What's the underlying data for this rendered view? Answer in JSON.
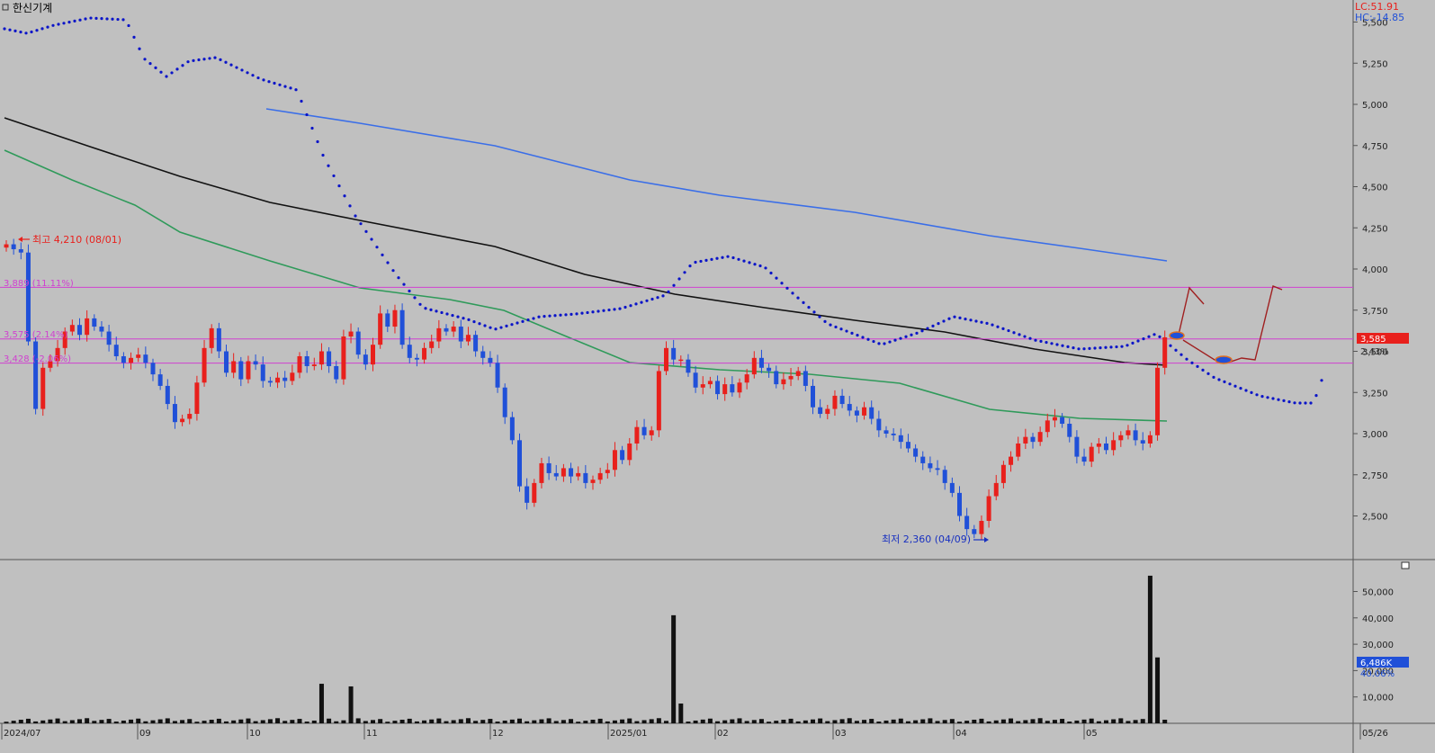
{
  "header": {
    "stock_name": "한신기계"
  },
  "indicators": {
    "lc": "LC:51.91",
    "hc": "HC:-14.85"
  },
  "annotations": {
    "high": "최고 4,210 (08/01)",
    "low": "최저 2,360 (04/09)",
    "level1": "3,889 (11.11%)",
    "level2": "3,575 (2.14%)",
    "level3": "3,428 (-2.06%)",
    "current_price": "3,585",
    "current_pct": "2.43%",
    "volume_current": "6,486K",
    "volume_pct": "40.06%"
  },
  "colors": {
    "up": "#e8201c",
    "down": "#2050d8",
    "ma_blue": "#3a6ee8",
    "ma_black": "#111111",
    "ma_green": "#2f9a5a",
    "dots": "#0a14c8",
    "level": "#d040d0"
  },
  "chart_data": {
    "type": "candlestick",
    "price_axis": {
      "ticks": [
        2500,
        2750,
        3000,
        3250,
        3500,
        3750,
        4000,
        4250,
        4500,
        4750,
        5000,
        5250,
        5500
      ],
      "tick_labels": [
        "2,500",
        "2,750",
        "3,000",
        "3,250",
        "3,500",
        "3,750",
        "4,000",
        "4,250",
        "4,500",
        "4,750",
        "5,000",
        "5,250",
        "5,500"
      ]
    },
    "volume_axis": {
      "ticks": [
        10000,
        20000,
        30000,
        40000,
        50000
      ],
      "tick_labels": [
        "10,000",
        "20,000",
        "30,000",
        "40,000",
        "50,000"
      ]
    },
    "date_axis": [
      "2024/07",
      "09",
      "10",
      "11",
      "12",
      "2025/01",
      "02",
      "03",
      "04",
      "05",
      "05/26"
    ],
    "levels": [
      3889,
      3575,
      3428
    ],
    "high": {
      "value": 4210,
      "date": "08/01"
    },
    "low": {
      "value": 2360,
      "date": "04/09"
    },
    "closes": [
      4150,
      4120,
      4100,
      3560,
      3150,
      3400,
      3440,
      3520,
      3620,
      3660,
      3600,
      3700,
      3650,
      3620,
      3540,
      3470,
      3430,
      3460,
      3480,
      3430,
      3360,
      3290,
      3180,
      3070,
      3090,
      3120,
      3310,
      3520,
      3640,
      3500,
      3370,
      3440,
      3330,
      3440,
      3420,
      3320,
      3310,
      3340,
      3320,
      3370,
      3470,
      3410,
      3420,
      3500,
      3410,
      3330,
      3590,
      3620,
      3480,
      3420,
      3540,
      3730,
      3650,
      3750,
      3540,
      3460,
      3450,
      3520,
      3560,
      3640,
      3620,
      3650,
      3560,
      3600,
      3500,
      3460,
      3430,
      3280,
      3100,
      2960,
      2680,
      2580,
      2700,
      2820,
      2760,
      2740,
      2790,
      2740,
      2760,
      2700,
      2720,
      2760,
      2780,
      2900,
      2840,
      2940,
      3040,
      2990,
      3020,
      3380,
      3520,
      3450,
      3450,
      3370,
      3280,
      3300,
      3320,
      3240,
      3300,
      3250,
      3310,
      3360,
      3460,
      3400,
      3380,
      3300,
      3330,
      3350,
      3380,
      3290,
      3160,
      3120,
      3150,
      3230,
      3180,
      3140,
      3110,
      3160,
      3090,
      3020,
      3000,
      2990,
      2950,
      2910,
      2860,
      2820,
      2790,
      2780,
      2700,
      2640,
      2500,
      2420,
      2390,
      2470,
      2620,
      2700,
      2810,
      2860,
      2940,
      2980,
      2950,
      3010,
      3080,
      3100,
      3060,
      2980,
      2860,
      2830,
      2920,
      2940,
      2900,
      2960,
      2990,
      3020,
      2960,
      2940,
      2990,
      3400,
      3585
    ]
  }
}
